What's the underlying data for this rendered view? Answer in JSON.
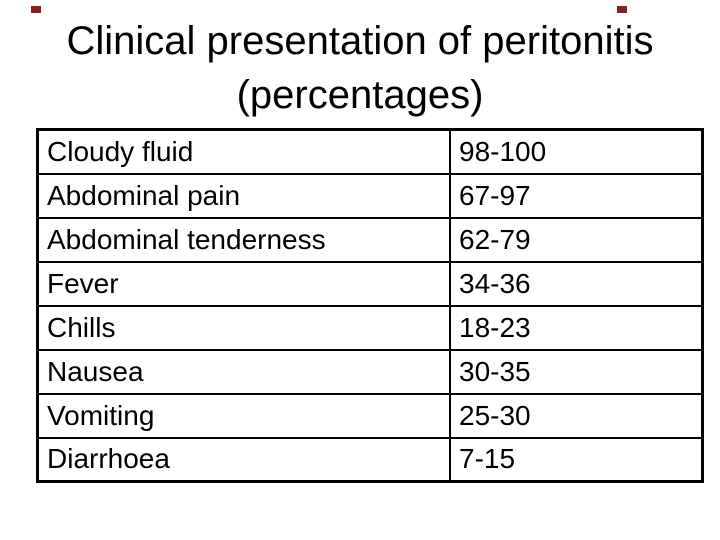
{
  "slide": {
    "title_line1": "Clinical presentation of peritonitis",
    "title_line2": "(percentages)"
  },
  "table": {
    "rows": [
      {
        "symptom": "Cloudy fluid",
        "range": "98-100"
      },
      {
        "symptom": "Abdominal pain",
        "range": "67-97"
      },
      {
        "symptom": "Abdominal tenderness",
        "range": "62-79"
      },
      {
        "symptom": "Fever",
        "range": "34-36"
      },
      {
        "symptom": "Chills",
        "range": "18-23"
      },
      {
        "symptom": "Nausea",
        "range": "30-35"
      },
      {
        "symptom": "Vomiting",
        "range": "25-30"
      },
      {
        "symptom": "Diarrhoea",
        "range": "7-15"
      }
    ]
  },
  "colors": {
    "background": "#ffffff",
    "text": "#000000",
    "table_border": "#000000",
    "corner_mark": "#8b1f1f"
  }
}
